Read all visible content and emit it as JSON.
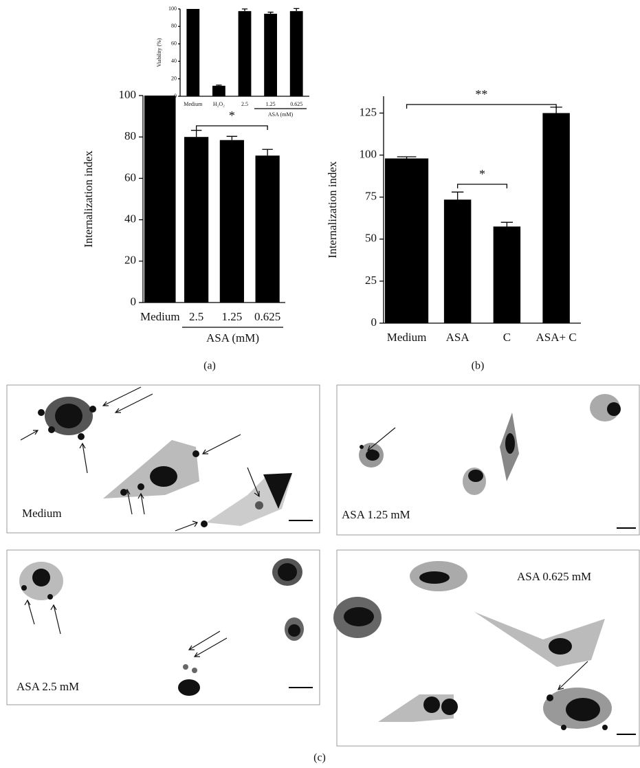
{
  "chart_data": [
    {
      "type": "bar",
      "categories": [
        "Medium",
        "2.5",
        "1.25",
        "0.625"
      ],
      "values": [
        100,
        80,
        78.5,
        71
      ],
      "errors": [
        0,
        3.2,
        1.8,
        3
      ],
      "color": "#000000",
      "ylim": [
        0,
        100
      ],
      "yticks": [
        0,
        20,
        40,
        60,
        80,
        100
      ],
      "ylabel": "Internalization index",
      "group_label": "ASA (mM)",
      "annotations": [
        "*"
      ],
      "panel_label": "(a)"
    },
    {
      "type": "bar",
      "categories": [
        "Medium",
        "H₂O₂",
        "2.5",
        "1.25",
        "0.625"
      ],
      "values": [
        100,
        12,
        97.5,
        94.5,
        97.5
      ],
      "errors": [
        0,
        0.8,
        2.5,
        1.8,
        3
      ],
      "color": "#000000",
      "ylim": [
        0,
        100
      ],
      "yticks": [
        0,
        20,
        40,
        60,
        80,
        100
      ],
      "ylabel": "Viability (%)",
      "group_label": "ASA (mM)"
    },
    {
      "type": "bar",
      "categories": [
        "Medium",
        "ASA",
        "C",
        "ASA+ C"
      ],
      "values": [
        98,
        73.5,
        57.5,
        125
      ],
      "errors": [
        1,
        4.5,
        2.5,
        3.5
      ],
      "color": "#000000",
      "ylim": [
        0,
        135
      ],
      "yticks": [
        0,
        25,
        50,
        75,
        100,
        125
      ],
      "ylabel": "Internalization index",
      "annotations": [
        "**",
        "*"
      ],
      "panel_label": "(b)"
    }
  ],
  "figure": {
    "panel_label": "(c)",
    "images": [
      "Medium",
      "ASA 1.25 mM",
      "ASA 2.5 mM",
      "ASA 0.625 mM"
    ]
  }
}
